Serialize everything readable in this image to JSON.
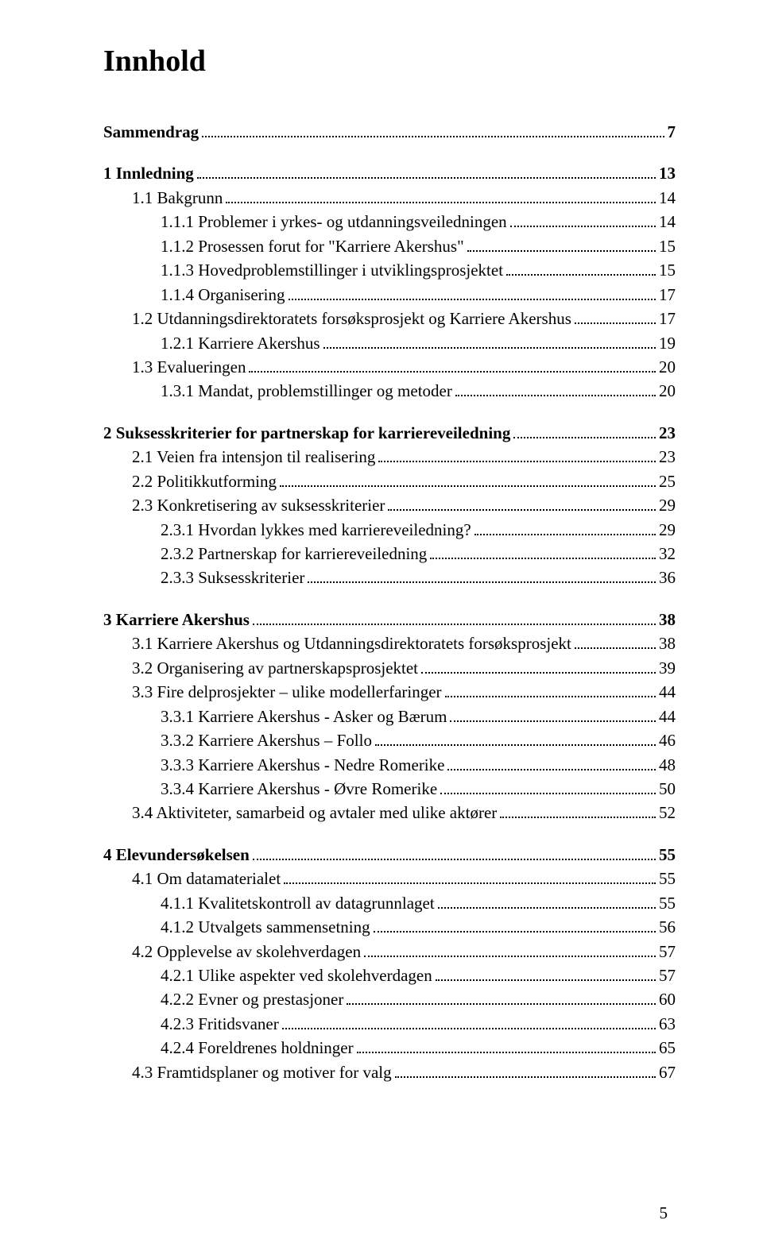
{
  "title": "Innhold",
  "page_number": "5",
  "colors": {
    "text": "#000000",
    "background": "#ffffff"
  },
  "typography": {
    "family": "Times New Roman",
    "title_size_pt": 28,
    "body_size_pt": 16
  },
  "toc": [
    {
      "level": 0,
      "label": "Sammendrag",
      "page": "7",
      "gap_before": false
    },
    {
      "level": 1,
      "label": "1   Innledning",
      "page": "13",
      "gap_before": true
    },
    {
      "level": 2,
      "label": "1.1 Bakgrunn",
      "page": "14"
    },
    {
      "level": 3,
      "label": "1.1.1 Problemer i yrkes- og utdanningsveiledningen",
      "page": "14"
    },
    {
      "level": 3,
      "label": "1.1.2 Prosessen forut for \"Karriere Akershus\"",
      "page": "15"
    },
    {
      "level": 3,
      "label": "1.1.3 Hovedproblemstillinger i utviklingsprosjektet",
      "page": "15"
    },
    {
      "level": 3,
      "label": "1.1.4 Organisering",
      "page": "17"
    },
    {
      "level": 2,
      "label": "1.2 Utdanningsdirektoratets forsøksprosjekt og Karriere Akershus",
      "page": "17"
    },
    {
      "level": 3,
      "label": "1.2.1 Karriere Akershus",
      "page": "19"
    },
    {
      "level": 2,
      "label": "1.3 Evalueringen",
      "page": "20"
    },
    {
      "level": 3,
      "label": "1.3.1 Mandat, problemstillinger og metoder",
      "page": "20"
    },
    {
      "level": 1,
      "label": "2   Suksesskriterier for partnerskap for karriereveiledning",
      "page": "23",
      "gap_before": true
    },
    {
      "level": 2,
      "label": "2.1 Veien fra intensjon til realisering",
      "page": "23"
    },
    {
      "level": 2,
      "label": "2.2 Politikkutforming",
      "page": "25"
    },
    {
      "level": 2,
      "label": "2.3 Konkretisering av suksesskriterier",
      "page": "29"
    },
    {
      "level": 3,
      "label": "2.3.1 Hvordan lykkes med karriereveiledning?",
      "page": "29"
    },
    {
      "level": 3,
      "label": "2.3.2 Partnerskap for karriereveiledning",
      "page": "32"
    },
    {
      "level": 3,
      "label": "2.3.3 Suksesskriterier",
      "page": "36"
    },
    {
      "level": 1,
      "label": "3   Karriere Akershus",
      "page": "38",
      "gap_before": true
    },
    {
      "level": 2,
      "label": "3.1 Karriere Akershus og Utdanningsdirektoratets forsøksprosjekt",
      "page": "38"
    },
    {
      "level": 2,
      "label": "3.2 Organisering av partnerskapsprosjektet",
      "page": "39"
    },
    {
      "level": 2,
      "label": "3.3 Fire delprosjekter – ulike modellerfaringer",
      "page": "44"
    },
    {
      "level": 3,
      "label": "3.3.1 Karriere Akershus - Asker og Bærum",
      "page": "44"
    },
    {
      "level": 3,
      "label": "3.3.2 Karriere Akershus – Follo",
      "page": "46"
    },
    {
      "level": 3,
      "label": "3.3.3 Karriere Akershus - Nedre Romerike",
      "page": "48"
    },
    {
      "level": 3,
      "label": "3.3.4 Karriere Akershus - Øvre Romerike",
      "page": "50"
    },
    {
      "level": 2,
      "label": "3.4 Aktiviteter, samarbeid og avtaler med ulike aktører",
      "page": "52"
    },
    {
      "level": 1,
      "label": "4   Elevundersøkelsen",
      "page": "55",
      "gap_before": true
    },
    {
      "level": 2,
      "label": "4.1 Om datamaterialet",
      "page": "55"
    },
    {
      "level": 3,
      "label": "4.1.1 Kvalitetskontroll av datagrunnlaget",
      "page": "55"
    },
    {
      "level": 3,
      "label": "4.1.2 Utvalgets sammensetning",
      "page": "56"
    },
    {
      "level": 2,
      "label": "4.2 Opplevelse av skolehverdagen",
      "page": "57"
    },
    {
      "level": 3,
      "label": "4.2.1 Ulike aspekter ved skolehverdagen",
      "page": "57"
    },
    {
      "level": 3,
      "label": "4.2.2 Evner og prestasjoner",
      "page": "60"
    },
    {
      "level": 3,
      "label": "4.2.3 Fritidsvaner",
      "page": "63"
    },
    {
      "level": 3,
      "label": "4.2.4 Foreldrenes holdninger",
      "page": "65"
    },
    {
      "level": 2,
      "label": "4.3 Framtidsplaner og motiver for valg",
      "page": "67"
    }
  ]
}
